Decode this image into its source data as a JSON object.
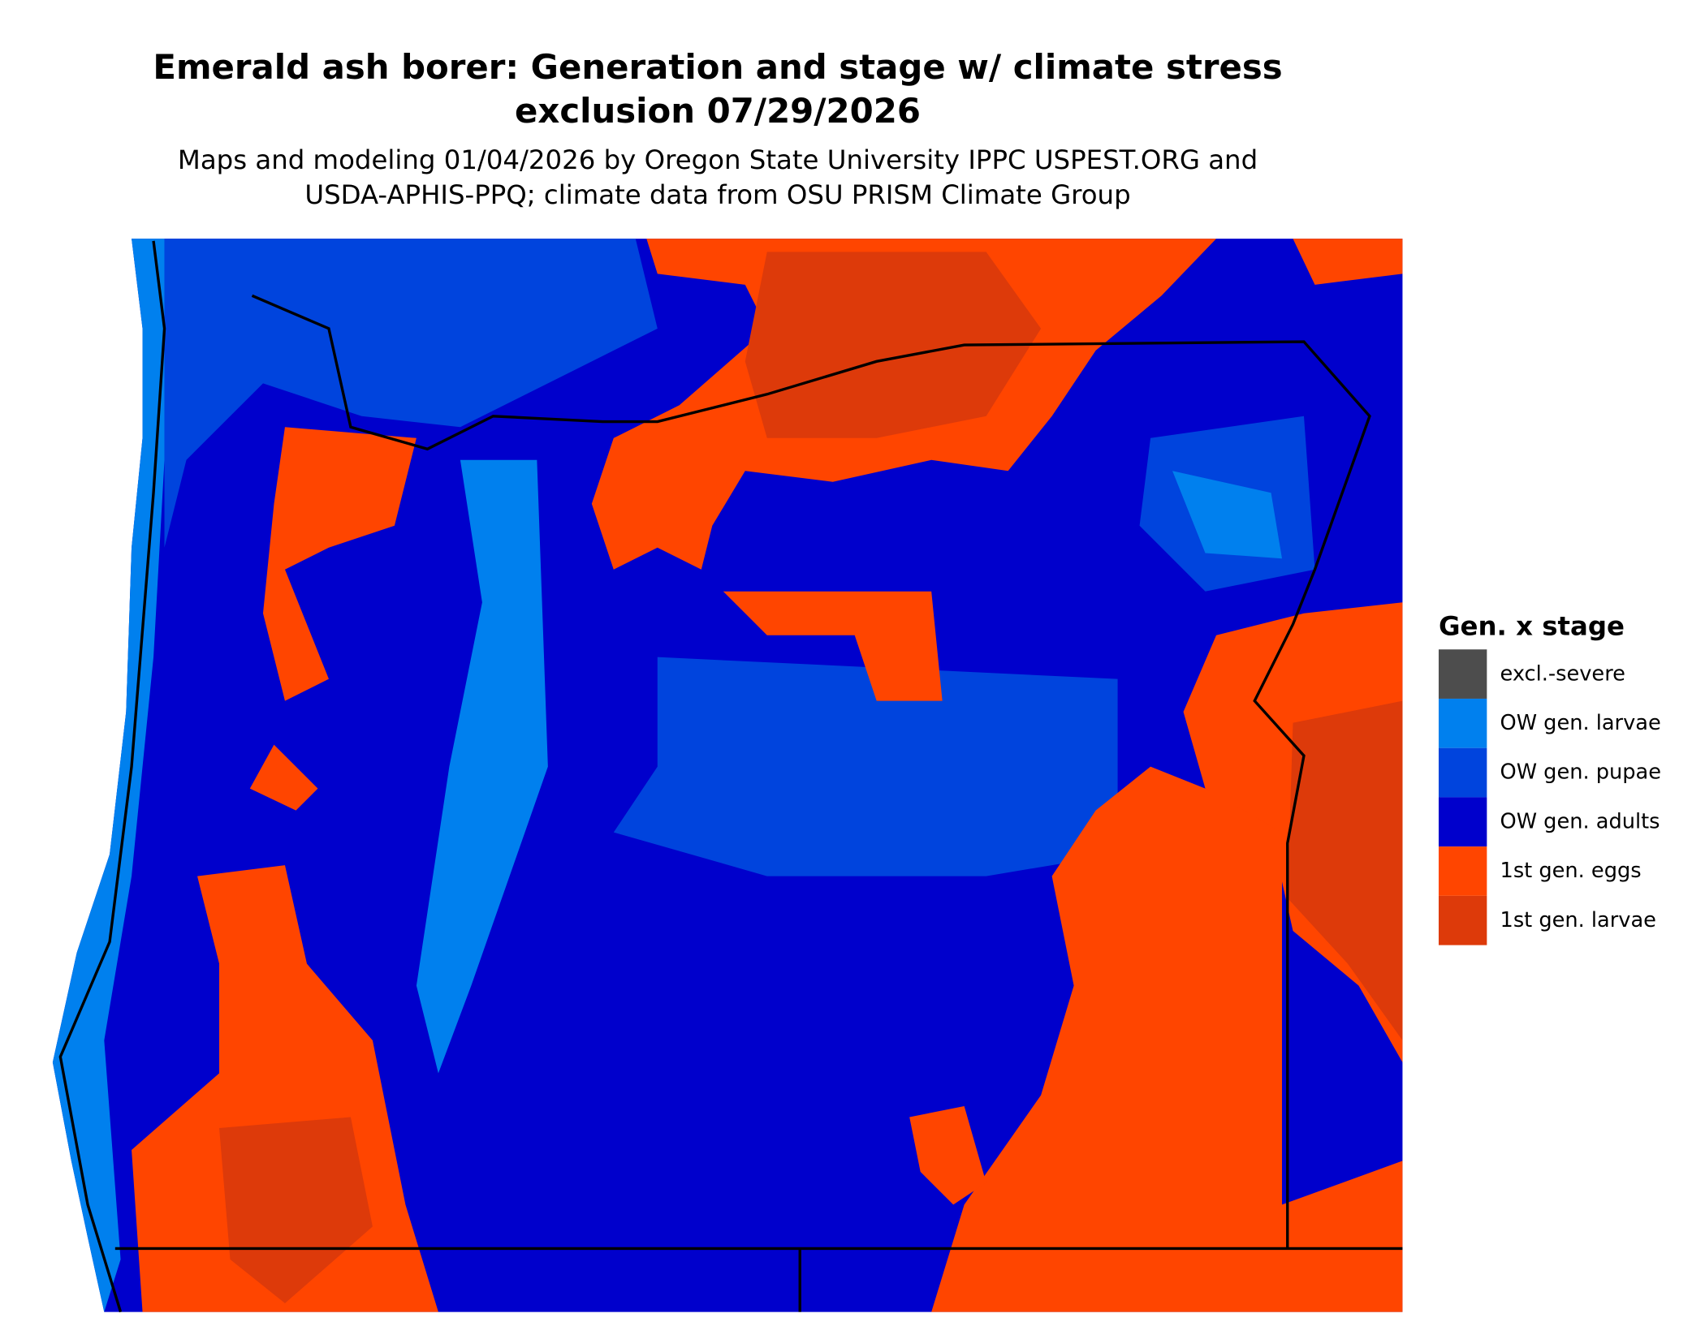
{
  "title": [
    "Emerald ash borer: Generation and stage w/ climate stress",
    "exclusion 07/29/2026"
  ],
  "subtitle": [
    "Maps and modeling 01/04/2026 by Oregon State University IPPC USPEST.ORG and",
    "USDA-APHIS-PPQ; climate data from OSU PRISM Climate Group"
  ],
  "legend": {
    "title": "Gen. x stage",
    "items": [
      {
        "label": "excl.-severe",
        "color": "#4d4d4d"
      },
      {
        "label": "OW gen. larvae",
        "color": "#0080ee"
      },
      {
        "label": "OW gen. pupae",
        "color": "#0044dd"
      },
      {
        "label": "OW gen. adults",
        "color": "#0000cc"
      },
      {
        "label": "1st gen. eggs",
        "color": "#ff4500"
      },
      {
        "label": "1st gen. larvae",
        "color": "#dd3a0a"
      }
    ]
  }
}
